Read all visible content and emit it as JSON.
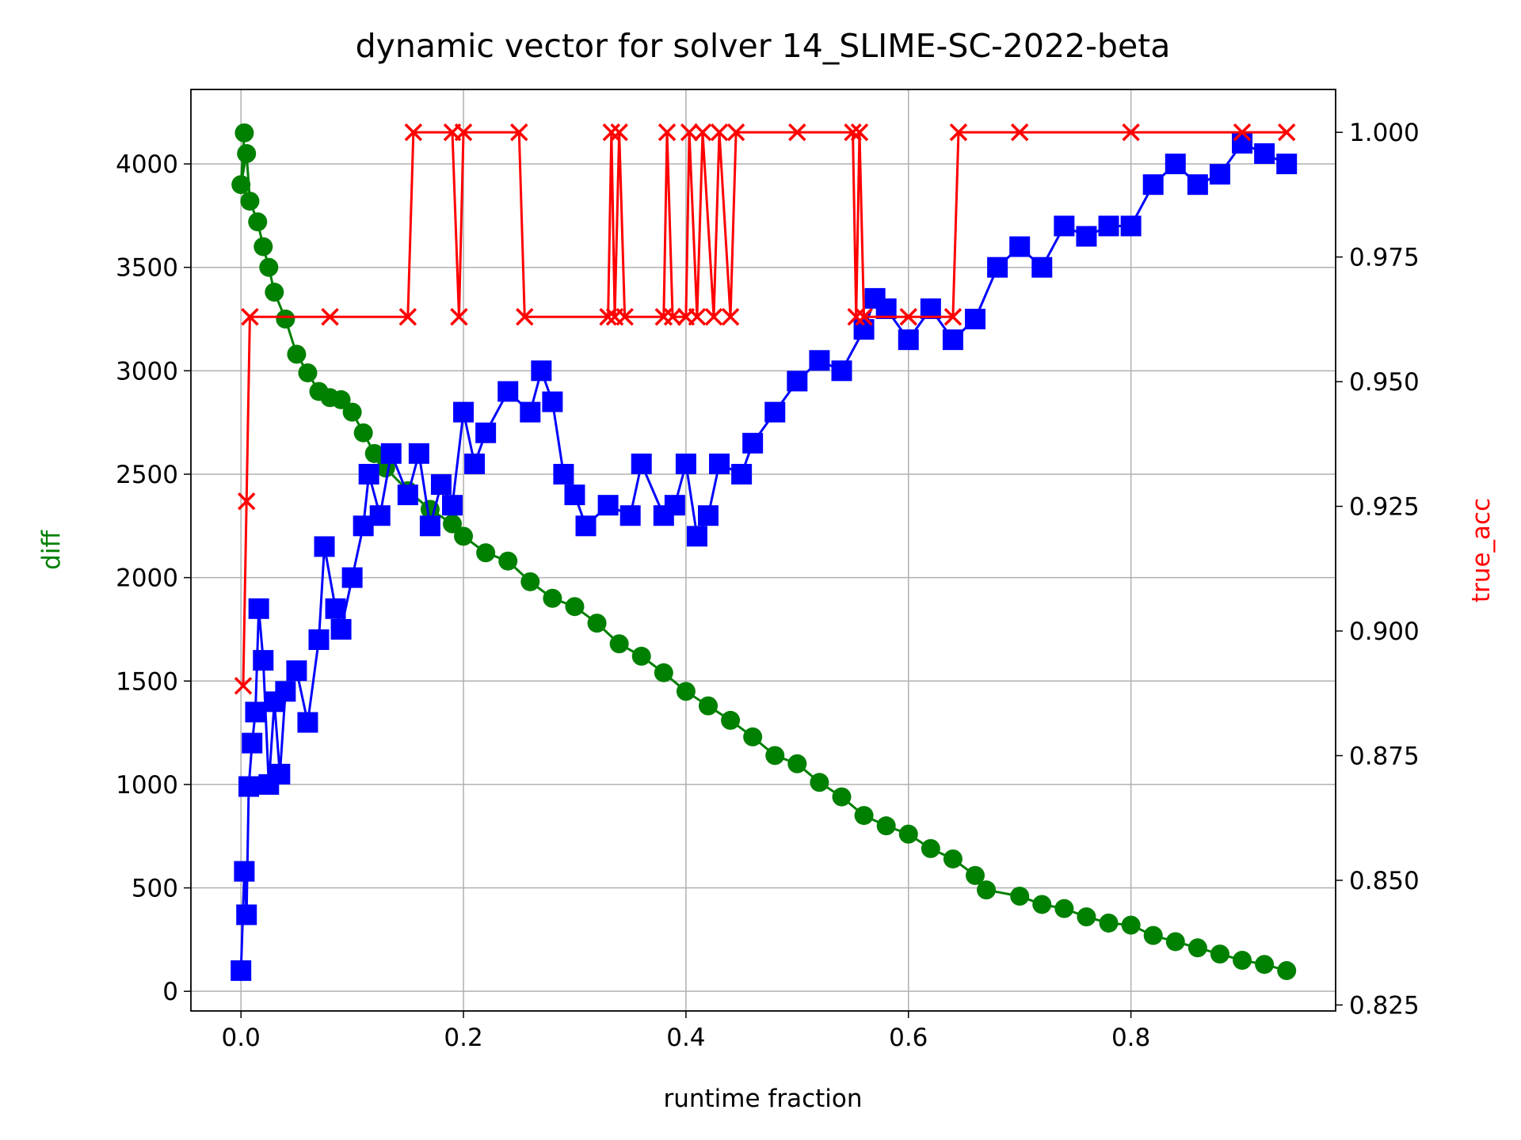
{
  "chart_data": {
    "type": "line",
    "title": "dynamic vector for solver 14_SLIME-SC-2022-beta",
    "xlabel": "runtime fraction",
    "ylabel": "diff",
    "y2label": "true_acc",
    "ylabel_color": "green",
    "y2label_color": "red",
    "grid": true,
    "xlim": [
      -0.045,
      0.984
    ],
    "ylim": [
      -95,
      4360
    ],
    "y2lim": [
      0.8238,
      1.0086
    ],
    "xticks": [
      {
        "value": 0,
        "label": "0.0"
      },
      0.2,
      0.4,
      0.6,
      0.8
    ],
    "yticks": [
      0,
      500,
      1000,
      1500,
      2000,
      2500,
      3000,
      3500,
      4000
    ],
    "y2ticks": [
      0.825,
      {
        "value": 0.85,
        "label": "0.850"
      },
      0.875,
      {
        "value": 0.9,
        "label": "0.900"
      },
      0.925,
      {
        "value": 0.95,
        "label": "0.950"
      },
      0.975,
      {
        "value": 1.0,
        "label": "1.000"
      }
    ],
    "series": [
      {
        "color": "green",
        "marker": "circle",
        "axis": "y",
        "x": [
          0.003,
          0.0,
          0.005,
          0.008,
          0.015,
          0.02,
          0.025,
          0.03,
          0.04,
          0.05,
          0.06,
          0.07,
          0.08,
          0.09,
          0.1,
          0.11,
          0.12,
          0.13,
          0.15,
          0.17,
          0.19,
          0.2,
          0.22,
          0.24,
          0.26,
          0.28,
          0.3,
          0.32,
          0.34,
          0.36,
          0.38,
          0.4,
          0.42,
          0.44,
          0.46,
          0.48,
          0.5,
          0.52,
          0.54,
          0.56,
          0.58,
          0.6,
          0.62,
          0.64,
          0.66,
          0.67,
          0.7,
          0.72,
          0.74,
          0.76,
          0.78,
          0.8,
          0.82,
          0.84,
          0.86,
          0.88,
          0.9,
          0.92,
          0.94
        ],
        "values": [
          4150,
          3900,
          4050,
          3820,
          3720,
          3600,
          3500,
          3380,
          3250,
          3080,
          2990,
          2900,
          2870,
          2860,
          2800,
          2700,
          2600,
          2530,
          2420,
          2330,
          2260,
          2200,
          2120,
          2080,
          1980,
          1900,
          1860,
          1780,
          1680,
          1620,
          1540,
          1450,
          1380,
          1310,
          1230,
          1140,
          1100,
          1010,
          940,
          850,
          800,
          760,
          690,
          640,
          560,
          490,
          460,
          420,
          400,
          360,
          330,
          320,
          270,
          240,
          210,
          180,
          150,
          130,
          100
        ]
      },
      {
        "color": "blue",
        "marker": "square",
        "axis": "y",
        "x": [
          0.0,
          0.003,
          0.005,
          0.007,
          0.01,
          0.013,
          0.016,
          0.02,
          0.025,
          0.03,
          0.035,
          0.04,
          0.05,
          0.06,
          0.07,
          0.075,
          0.085,
          0.09,
          0.1,
          0.11,
          0.115,
          0.125,
          0.135,
          0.15,
          0.16,
          0.17,
          0.18,
          0.19,
          0.2,
          0.21,
          0.22,
          0.24,
          0.26,
          0.27,
          0.28,
          0.29,
          0.3,
          0.31,
          0.33,
          0.35,
          0.36,
          0.38,
          0.39,
          0.4,
          0.41,
          0.42,
          0.43,
          0.45,
          0.46,
          0.48,
          0.5,
          0.52,
          0.54,
          0.56,
          0.57,
          0.58,
          0.6,
          0.62,
          0.64,
          0.66,
          0.68,
          0.7,
          0.72,
          0.74,
          0.76,
          0.78,
          0.8,
          0.82,
          0.84,
          0.86,
          0.88,
          0.9,
          0.92,
          0.94
        ],
        "values": [
          100,
          580,
          370,
          990,
          1200,
          1350,
          1850,
          1600,
          1000,
          1400,
          1050,
          1450,
          1550,
          1300,
          1700,
          2150,
          1850,
          1750,
          2000,
          2250,
          2500,
          2300,
          2600,
          2400,
          2600,
          2250,
          2450,
          2350,
          2800,
          2550,
          2700,
          2900,
          2800,
          3000,
          2850,
          2500,
          2400,
          2250,
          2350,
          2300,
          2550,
          2300,
          2350,
          2550,
          2200,
          2300,
          2550,
          2500,
          2650,
          2800,
          2950,
          3050,
          3000,
          3200,
          3350,
          3300,
          3150,
          3300,
          3150,
          3250,
          3500,
          3600,
          3500,
          3700,
          3650,
          3700,
          3700,
          3900,
          4000,
          3900,
          3950,
          4100,
          4050,
          4000
        ]
      },
      {
        "color": "red",
        "marker": "x",
        "axis": "y2",
        "x": [
          0.002,
          0.005,
          0.008,
          0.08,
          0.15,
          0.155,
          0.19,
          0.196,
          0.2,
          0.25,
          0.255,
          0.33,
          0.333,
          0.336,
          0.34,
          0.345,
          0.38,
          0.383,
          0.388,
          0.4,
          0.403,
          0.41,
          0.415,
          0.425,
          0.43,
          0.44,
          0.445,
          0.5,
          0.55,
          0.553,
          0.556,
          0.56,
          0.6,
          0.64,
          0.645,
          0.7,
          0.8,
          0.9,
          0.94
        ],
        "values": [
          0.889,
          0.926,
          0.963,
          0.963,
          0.963,
          1.0,
          1.0,
          0.963,
          1.0,
          1.0,
          0.963,
          0.963,
          1.0,
          0.963,
          1.0,
          0.963,
          0.963,
          1.0,
          0.963,
          0.963,
          1.0,
          0.963,
          1.0,
          0.963,
          1.0,
          0.963,
          1.0,
          1.0,
          1.0,
          0.963,
          1.0,
          0.963,
          0.963,
          0.963,
          1.0,
          1.0,
          1.0,
          1.0,
          1.0
        ]
      }
    ]
  }
}
